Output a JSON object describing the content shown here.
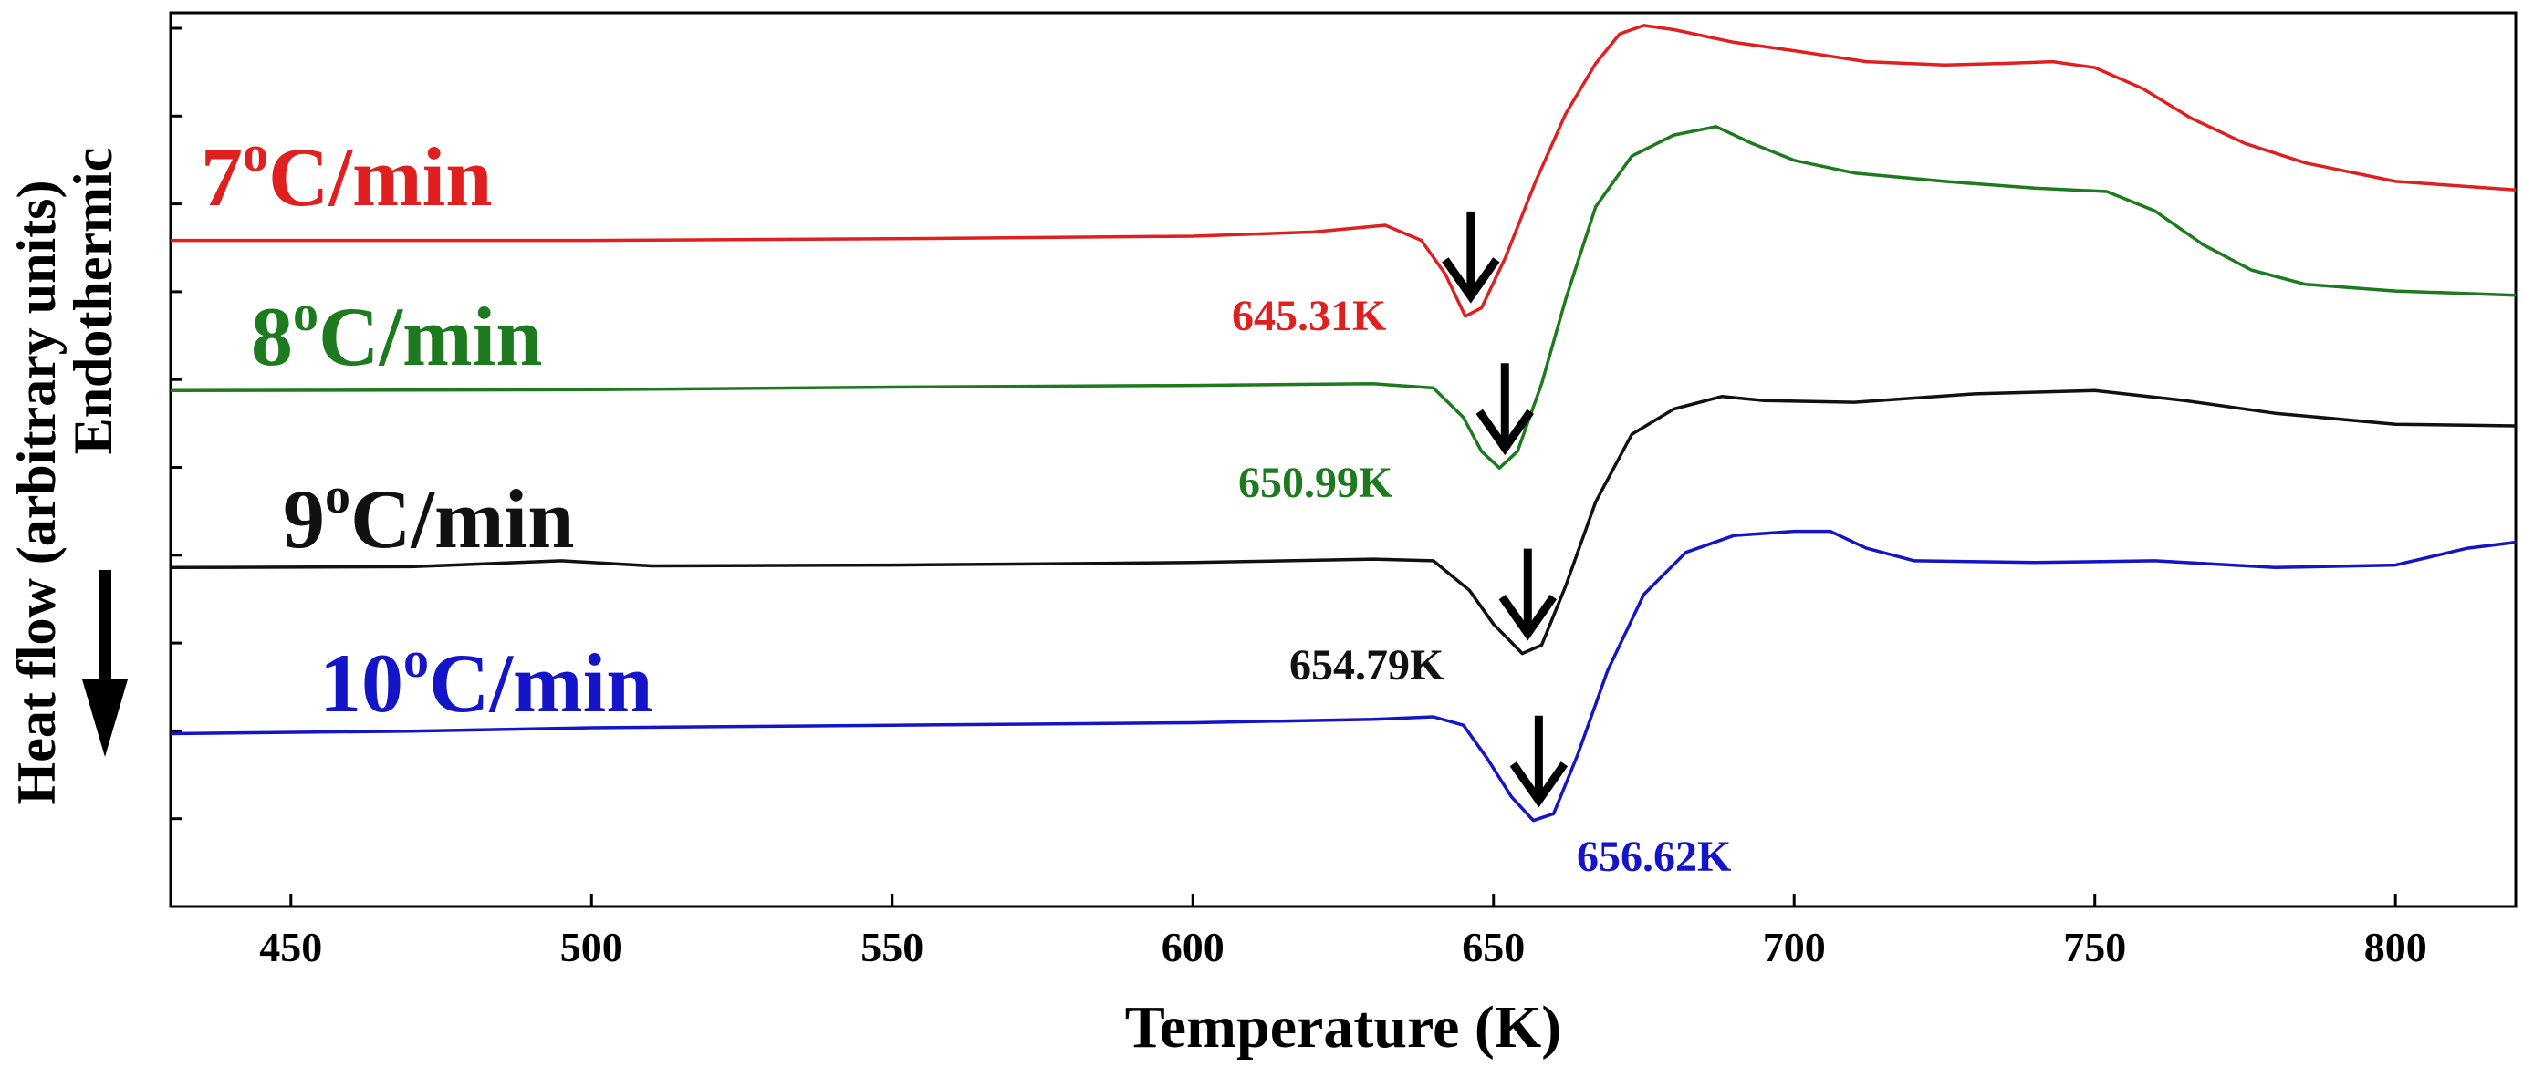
{
  "chart_data": {
    "type": "line",
    "title": "",
    "xlabel": "Temperature (K)",
    "ylabel": "Heat flow (arbitrary units)",
    "ylabel_secondary": "Endothermic",
    "xlim": [
      430,
      820
    ],
    "ylim": [
      -0.4,
      10.2
    ],
    "xticks": [
      450,
      500,
      550,
      600,
      650,
      700,
      750,
      800
    ],
    "yticks_minor_count": 10,
    "colors": {
      "axis": "#000000",
      "arrow": "#000000"
    },
    "series": [
      {
        "name": "7",
        "unit": "C/min",
        "superscript": "o",
        "color": "#e02020",
        "peak_label": "645.31K",
        "peak_x": 645.31,
        "points": [
          [
            430,
            7.5
          ],
          [
            500,
            7.5
          ],
          [
            550,
            7.52
          ],
          [
            600,
            7.55
          ],
          [
            620,
            7.6
          ],
          [
            632,
            7.68
          ],
          [
            638,
            7.5
          ],
          [
            642,
            7.1
          ],
          [
            645.31,
            6.6
          ],
          [
            648,
            6.7
          ],
          [
            652,
            7.3
          ],
          [
            657,
            8.2
          ],
          [
            662,
            9.0
          ],
          [
            667,
            9.6
          ],
          [
            671,
            9.95
          ],
          [
            675,
            10.05
          ],
          [
            680,
            10.0
          ],
          [
            690,
            9.85
          ],
          [
            700,
            9.75
          ],
          [
            712,
            9.62
          ],
          [
            725,
            9.58
          ],
          [
            735,
            9.6
          ],
          [
            743,
            9.62
          ],
          [
            750,
            9.55
          ],
          [
            758,
            9.3
          ],
          [
            766,
            8.95
          ],
          [
            775,
            8.65
          ],
          [
            785,
            8.42
          ],
          [
            800,
            8.2
          ],
          [
            820,
            8.1
          ]
        ]
      },
      {
        "name": "8",
        "unit": "C/min",
        "superscript": "o",
        "color": "#1e7a1e",
        "peak_label": "650.99K",
        "peak_x": 650.99,
        "points": [
          [
            430,
            5.72
          ],
          [
            500,
            5.73
          ],
          [
            550,
            5.76
          ],
          [
            600,
            5.78
          ],
          [
            630,
            5.8
          ],
          [
            640,
            5.75
          ],
          [
            645,
            5.4
          ],
          [
            648,
            5.0
          ],
          [
            650.99,
            4.8
          ],
          [
            654,
            5.0
          ],
          [
            658,
            5.8
          ],
          [
            662,
            6.8
          ],
          [
            667,
            7.9
          ],
          [
            673,
            8.5
          ],
          [
            680,
            8.75
          ],
          [
            687,
            8.85
          ],
          [
            693,
            8.65
          ],
          [
            700,
            8.45
          ],
          [
            710,
            8.3
          ],
          [
            725,
            8.2
          ],
          [
            740,
            8.12
          ],
          [
            752,
            8.08
          ],
          [
            760,
            7.85
          ],
          [
            768,
            7.45
          ],
          [
            776,
            7.15
          ],
          [
            785,
            6.98
          ],
          [
            800,
            6.9
          ],
          [
            820,
            6.85
          ]
        ]
      },
      {
        "name": "9",
        "unit": "C/min",
        "superscript": "o",
        "color": "#111111",
        "peak_label": "654.79K",
        "peak_x": 654.79,
        "points": [
          [
            430,
            3.62
          ],
          [
            470,
            3.63
          ],
          [
            495,
            3.7
          ],
          [
            510,
            3.64
          ],
          [
            550,
            3.65
          ],
          [
            600,
            3.68
          ],
          [
            630,
            3.72
          ],
          [
            640,
            3.7
          ],
          [
            646,
            3.35
          ],
          [
            650,
            2.95
          ],
          [
            654.79,
            2.6
          ],
          [
            658,
            2.7
          ],
          [
            662,
            3.4
          ],
          [
            667,
            4.4
          ],
          [
            673,
            5.2
          ],
          [
            680,
            5.5
          ],
          [
            688,
            5.65
          ],
          [
            695,
            5.6
          ],
          [
            710,
            5.58
          ],
          [
            730,
            5.68
          ],
          [
            750,
            5.72
          ],
          [
            765,
            5.6
          ],
          [
            780,
            5.45
          ],
          [
            800,
            5.32
          ],
          [
            820,
            5.3
          ]
        ]
      },
      {
        "name": "10",
        "unit": "C/min",
        "superscript": "o",
        "color": "#1414c8",
        "peak_label": "656.62K",
        "peak_x": 656.62,
        "points": [
          [
            430,
            1.65
          ],
          [
            470,
            1.68
          ],
          [
            500,
            1.72
          ],
          [
            550,
            1.75
          ],
          [
            600,
            1.78
          ],
          [
            630,
            1.82
          ],
          [
            640,
            1.85
          ],
          [
            645,
            1.75
          ],
          [
            649,
            1.35
          ],
          [
            653,
            0.9
          ],
          [
            656.62,
            0.62
          ],
          [
            660,
            0.7
          ],
          [
            664,
            1.4
          ],
          [
            669,
            2.4
          ],
          [
            675,
            3.3
          ],
          [
            682,
            3.8
          ],
          [
            690,
            4.0
          ],
          [
            700,
            4.05
          ],
          [
            706,
            4.05
          ],
          [
            712,
            3.85
          ],
          [
            720,
            3.7
          ],
          [
            740,
            3.68
          ],
          [
            760,
            3.7
          ],
          [
            780,
            3.62
          ],
          [
            800,
            3.65
          ],
          [
            812,
            3.85
          ],
          [
            820,
            3.92
          ]
        ]
      }
    ]
  }
}
